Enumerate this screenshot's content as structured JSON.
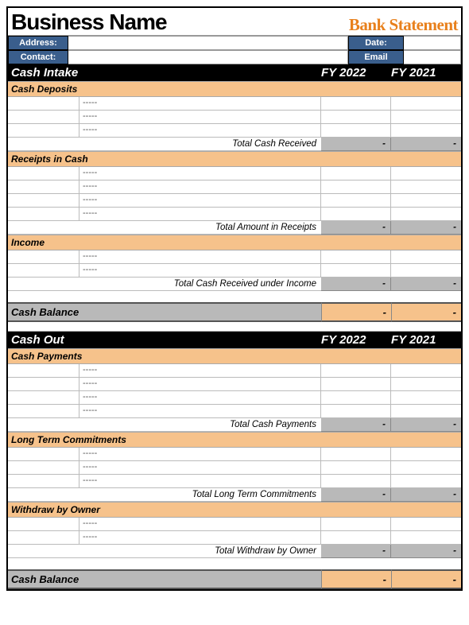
{
  "header": {
    "business_name": "Business Name",
    "bank_statement": "Bank Statement",
    "labels": {
      "address": "Address:",
      "contact": "Contact:",
      "date": "Date:",
      "email": "Email"
    },
    "values": {
      "address": "",
      "contact": "",
      "date": "",
      "email": ""
    }
  },
  "columns": {
    "fy_current": "FY 2022",
    "fy_prior": "FY 2021"
  },
  "intake": {
    "title": "Cash Intake",
    "cash_deposits": {
      "label": "Cash Deposits",
      "rows": [
        "-----",
        "-----",
        "-----"
      ],
      "total_label": "Total Cash Received",
      "total_cur": "-",
      "total_pri": "-"
    },
    "receipts": {
      "label": "Receipts in Cash",
      "rows": [
        "-----",
        "-----",
        "-----",
        "-----"
      ],
      "total_label": "Total Amount in Receipts",
      "total_cur": "-",
      "total_pri": "-"
    },
    "income": {
      "label": "Income",
      "rows": [
        "-----",
        "-----"
      ],
      "total_label": "Total Cash Received under Income",
      "total_cur": "-",
      "total_pri": "-"
    },
    "balance": {
      "label": "Cash Balance",
      "cur": "-",
      "pri": "-"
    }
  },
  "out": {
    "title": "Cash Out",
    "payments": {
      "label": "Cash Payments",
      "rows": [
        "-----",
        "-----",
        "-----",
        "-----"
      ],
      "total_label": "Total Cash Payments",
      "total_cur": "-",
      "total_pri": "-"
    },
    "commitments": {
      "label": "Long Term Commitments",
      "rows": [
        "-----",
        "-----",
        "-----"
      ],
      "total_label": "Total Long Term Commitments",
      "total_cur": "-",
      "total_pri": "-"
    },
    "withdraw": {
      "label": "Withdraw by Owner",
      "rows": [
        "-----",
        "-----"
      ],
      "total_label": "Total Withdraw by Owner",
      "total_cur": "-",
      "total_pri": "-"
    },
    "balance": {
      "label": "Cash Balance",
      "cur": "-",
      "pri": "-"
    }
  },
  "colors": {
    "orange_header": "#f6c28b",
    "orange_text": "#e8801c",
    "blue_label": "#3a5e8c",
    "gray_total": "#b9b9b9",
    "black": "#000000"
  }
}
